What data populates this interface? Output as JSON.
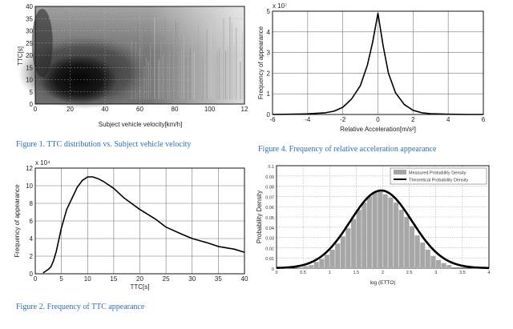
{
  "captions": {
    "fig1": "Figure 1. TTC distribution vs. Subject vehicle velocity",
    "fig2": "Figure 2. Frequency of TTC appearance",
    "fig4": "Figure 4. Frequency of relative acceleration appearance"
  },
  "chart_data": [
    {
      "id": "fig1",
      "type": "heatmap",
      "xlabel": "Subject vehicle velocity[km/h]",
      "ylabel": "TTC[s]",
      "xlim": [
        0,
        120
      ],
      "ylim": [
        0,
        40
      ],
      "xticks": [
        "0",
        "20",
        "40",
        "60",
        "80",
        "100",
        "12"
      ],
      "yticks": [
        "0",
        "5",
        "10",
        "15",
        "20",
        "25",
        "30",
        "35",
        "40"
      ],
      "grid": true,
      "colormap": "grayscale (dark = high density)",
      "density_peak": {
        "x": 25,
        "y": 7
      }
    },
    {
      "id": "fig4",
      "type": "line",
      "xlabel": "Relative Acceleration[m/s²]",
      "ylabel": "Frequency of appearance",
      "y_multiplier": "x 10⁷",
      "xlim": [
        -6,
        6
      ],
      "ylim": [
        0,
        5
      ],
      "xticks": [
        "-6",
        "-4",
        "-2",
        "0",
        "2",
        "4",
        "6"
      ],
      "yticks": [
        "0",
        "1",
        "2",
        "3",
        "4",
        "5"
      ],
      "grid": true,
      "x": [
        -6,
        -5,
        -4,
        -3,
        -2.5,
        -2,
        -1.5,
        -1,
        -0.6,
        -0.3,
        0,
        0.3,
        0.6,
        1,
        1.5,
        2,
        2.5,
        3,
        4,
        5,
        6
      ],
      "y": [
        0,
        0.01,
        0.03,
        0.08,
        0.16,
        0.35,
        0.75,
        1.4,
        2.4,
        3.5,
        4.9,
        3.3,
        2.0,
        1.05,
        0.48,
        0.2,
        0.08,
        0.04,
        0.01,
        0.0,
        0.0
      ]
    },
    {
      "id": "fig2",
      "type": "line",
      "xlabel": "TTC[s]",
      "ylabel": "Frequency of appearance",
      "y_multiplier": "x 10⁴",
      "xlim": [
        0,
        40
      ],
      "ylim": [
        0,
        12
      ],
      "xticks": [
        "0",
        "5",
        "10",
        "15",
        "20",
        "25",
        "30",
        "35",
        "40"
      ],
      "yticks": [
        "0",
        "2",
        "4",
        "6",
        "8",
        "10",
        "12"
      ],
      "grid": true,
      "x": [
        1.5,
        2.5,
        3,
        3.5,
        4,
        5,
        6,
        8,
        9,
        10,
        11,
        12,
        13,
        15,
        17,
        20,
        23,
        25,
        28,
        30,
        33,
        35,
        38,
        40
      ],
      "y": [
        0.1,
        0.5,
        0.8,
        1.5,
        2.5,
        5.2,
        7.3,
        9.8,
        10.6,
        11.0,
        11.0,
        10.8,
        10.5,
        9.7,
        8.6,
        7.3,
        6.2,
        5.3,
        4.5,
        4.0,
        3.5,
        3.1,
        2.8,
        2.45
      ]
    },
    {
      "id": "fig3",
      "type": "bar",
      "xlabel": "log (ETTO)",
      "ylabel": "Probability Density",
      "xlim": [
        0,
        4
      ],
      "ylim": [
        0,
        0.1
      ],
      "xticks": [
        "0",
        "0.5",
        "1",
        "1.5",
        "2",
        "2.5",
        "3",
        "3.5",
        "4"
      ],
      "yticks": [
        "0",
        "0.01",
        "0.02",
        "0.03",
        "0.04",
        "0.05",
        "0.06",
        "0.07",
        "0.08",
        "0.09",
        "0.1"
      ],
      "legend": [
        "Measured Probability Density",
        "Theoretical Probability Density"
      ],
      "legend_position": "top-right",
      "bar_color": "#a6a6a6",
      "curve_color": "#000000",
      "theoretical": {
        "mu": 1.97,
        "sigma": 0.58,
        "peak": 0.0758
      },
      "bars": {
        "x": [
          0.45,
          0.55,
          0.65,
          0.75,
          0.85,
          0.95,
          1.05,
          1.15,
          1.25,
          1.35,
          1.45,
          1.55,
          1.65,
          1.75,
          1.85,
          1.95,
          2.05,
          2.15,
          2.25,
          2.35,
          2.45,
          2.55,
          2.65,
          2.75,
          2.85,
          2.95,
          3.05,
          3.15,
          3.25
        ],
        "y": [
          0.001,
          0.002,
          0.003,
          0.006,
          0.009,
          0.013,
          0.018,
          0.024,
          0.031,
          0.039,
          0.048,
          0.057,
          0.064,
          0.07,
          0.074,
          0.075,
          0.072,
          0.069,
          0.064,
          0.057,
          0.05,
          0.041,
          0.032,
          0.025,
          0.018,
          0.012,
          0.008,
          0.005,
          0.003
        ]
      }
    }
  ]
}
